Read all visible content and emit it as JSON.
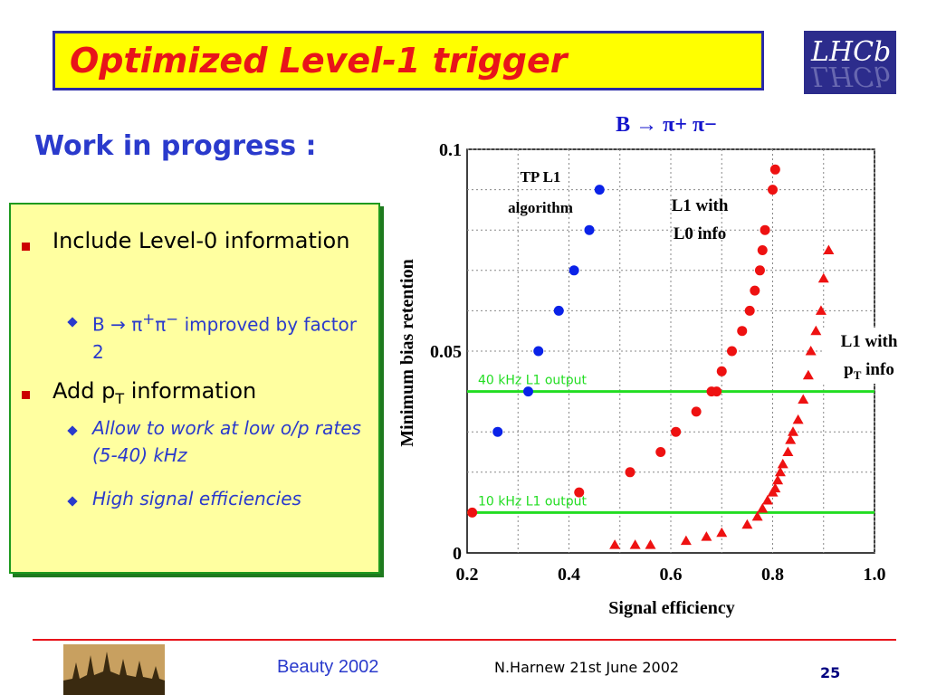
{
  "slide": {
    "title": "Optimized Level-1 trigger",
    "logo": "LHCb",
    "subtitle": "Work in progress :",
    "bullets": [
      {
        "text": "Include Level-0 information",
        "sub": [
          {
            "text_pre": "B ",
            "symbol": "→ π",
            "sup1": "+",
            "mid": "π",
            "sup2": "−",
            "text_post": " improved by factor 2"
          }
        ]
      },
      {
        "text_pre": "Add p",
        "text_sub": "T",
        "text_post": " information",
        "sub": [
          {
            "text": "Allow to work at low o/p rates (5-40) kHz"
          },
          {
            "text": "High signal efficiencies"
          }
        ]
      }
    ],
    "footer": {
      "conference": "Beauty 2002",
      "author_date": "N.Harnew  21st June 2002",
      "page": "25"
    }
  },
  "colors": {
    "title_red": "#e8141a",
    "title_bg": "#ffff00",
    "accent_blue": "#2a3acc",
    "green_line": "#22dd22",
    "blue_series": "#0a22e8",
    "red_series": "#ee1111"
  },
  "chart_data": {
    "type": "scatter",
    "title": "B → π+ π−",
    "xlabel": "Signal efficiency",
    "ylabel": "Minimum bias retention",
    "xlim": [
      0.2,
      1.0
    ],
    "ylim": [
      0,
      0.1
    ],
    "xticks": [
      "0.2",
      "0.4",
      "0.6",
      "0.8",
      "1.0"
    ],
    "yticks": [
      "0",
      "0.05",
      "0.1"
    ],
    "grid": true,
    "hlines": [
      {
        "label": "40 kHz L1 output",
        "y": 0.04
      },
      {
        "label": "10 kHz L1 output",
        "y": 0.01
      }
    ],
    "annotations": [
      {
        "text": "TP L1 algorithm",
        "lines": [
          "TP L1",
          "algorithm"
        ]
      },
      {
        "text": "L1 with L0 info",
        "lines": [
          "L1 with",
          "L0 info"
        ]
      },
      {
        "text": "L1 with pT info",
        "line1": "L1 with",
        "line2_pre": "p",
        "line2_sub": "T",
        "line2_post": " info"
      }
    ],
    "series": [
      {
        "marker": "circle",
        "color": "#0a22e8",
        "x": [
          0.26,
          0.32,
          0.34,
          0.38,
          0.41,
          0.44,
          0.46
        ],
        "y": [
          0.03,
          0.04,
          0.05,
          0.06,
          0.07,
          0.08,
          0.09
        ]
      },
      {
        "marker": "circle",
        "color": "#ee1111",
        "x": [
          0.21,
          0.42,
          0.52,
          0.58,
          0.61,
          0.65,
          0.68,
          0.69,
          0.7,
          0.72,
          0.74,
          0.755,
          0.765,
          0.775,
          0.78,
          0.785,
          0.8,
          0.805
        ],
        "y": [
          0.01,
          0.015,
          0.02,
          0.025,
          0.03,
          0.035,
          0.04,
          0.04,
          0.045,
          0.05,
          0.055,
          0.06,
          0.065,
          0.07,
          0.075,
          0.08,
          0.09,
          0.095
        ]
      },
      {
        "marker": "triangle",
        "color": "#ee1111",
        "x": [
          0.49,
          0.53,
          0.56,
          0.63,
          0.67,
          0.7,
          0.75,
          0.77,
          0.78,
          0.79,
          0.8,
          0.805,
          0.81,
          0.815,
          0.82,
          0.83,
          0.835,
          0.84,
          0.85,
          0.86,
          0.87,
          0.875,
          0.885,
          0.895,
          0.9,
          0.91
        ],
        "y": [
          0.002,
          0.002,
          0.002,
          0.003,
          0.004,
          0.005,
          0.007,
          0.009,
          0.011,
          0.013,
          0.015,
          0.016,
          0.018,
          0.02,
          0.022,
          0.025,
          0.028,
          0.03,
          0.033,
          0.038,
          0.044,
          0.05,
          0.055,
          0.06,
          0.068,
          0.075
        ]
      }
    ]
  }
}
